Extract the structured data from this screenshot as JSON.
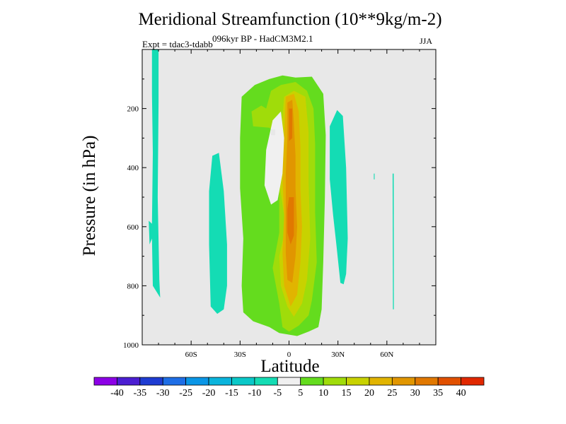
{
  "chart_data": {
    "type": "contour",
    "title": "Meridional Streamfunction (10**9kg/m-2)",
    "subtitle": "096kyr BP - HadCM3M2.1",
    "left_string": "Expt = tdac3-tdabb",
    "right_string": "JJA",
    "xlabel": "Latitude",
    "ylabel": "Pressure (in hPa)",
    "xlim": [
      -90,
      90
    ],
    "ylim": [
      1000,
      0
    ],
    "x_ticks": [
      {
        "value": -60,
        "label": "60S"
      },
      {
        "value": -30,
        "label": "30S"
      },
      {
        "value": 0,
        "label": "0"
      },
      {
        "value": 30,
        "label": "30N"
      },
      {
        "value": 60,
        "label": "60N"
      }
    ],
    "y_ticks": [
      {
        "value": 200,
        "label": "200"
      },
      {
        "value": 400,
        "label": "400"
      },
      {
        "value": 600,
        "label": "600"
      },
      {
        "value": 800,
        "label": "800"
      },
      {
        "value": 1000,
        "label": "1000"
      }
    ],
    "colorbar": {
      "labels": [
        "-40",
        "-35",
        "-30",
        "-25",
        "-20",
        "-15",
        "-10",
        "-5",
        "5",
        "10",
        "15",
        "20",
        "25",
        "30",
        "35",
        "40"
      ],
      "colors": [
        "#8c00e6",
        "#4b1ed2",
        "#1e3cd2",
        "#1e6ee6",
        "#0a96e6",
        "#0ab4dc",
        "#0ac8c8",
        "#14dcb4",
        "#f0f0f0",
        "#64dc1e",
        "#a0dc0a",
        "#c8d200",
        "#e1b400",
        "#e19600",
        "#e17800",
        "#e15000",
        "#e12800"
      ]
    },
    "background_color": "#e8e8e8",
    "regions": [
      {
        "level": -5,
        "color": "#14dcb4",
        "points": [
          [
            -84,
            0
          ],
          [
            -80,
            0
          ],
          [
            -80,
            180
          ],
          [
            -80.5,
            500
          ],
          [
            -79.5,
            780
          ],
          [
            -79,
            840
          ],
          [
            -83.5,
            800
          ],
          [
            -84,
            640
          ],
          [
            -85.5,
            660
          ],
          [
            -86,
            580
          ],
          [
            -84,
            590
          ],
          [
            -83.5,
            350
          ],
          [
            -84,
            150
          ]
        ]
      },
      {
        "level": -5,
        "color": "#14dcb4",
        "points": [
          [
            -47,
            360
          ],
          [
            -43,
            350
          ],
          [
            -40,
            480
          ],
          [
            -38,
            660
          ],
          [
            -38,
            800
          ],
          [
            -40,
            880
          ],
          [
            -44,
            895
          ],
          [
            -48,
            870
          ],
          [
            -49,
            660
          ],
          [
            -49,
            480
          ]
        ]
      },
      {
        "level": -5,
        "color": "#14dcb4",
        "points": [
          [
            25,
            260
          ],
          [
            29.5,
            205
          ],
          [
            33,
            225
          ],
          [
            35,
            400
          ],
          [
            36,
            640
          ],
          [
            35,
            760
          ],
          [
            33.5,
            795
          ],
          [
            31.5,
            790
          ],
          [
            29,
            660
          ],
          [
            27,
            560
          ],
          [
            25,
            440
          ]
        ]
      },
      {
        "level": -5,
        "color": "#14dcb4",
        "points": [
          [
            63.5,
            420
          ],
          [
            64.2,
            420
          ],
          [
            64.3,
            880
          ],
          [
            63.7,
            880
          ]
        ]
      },
      {
        "level": -5,
        "color": "#14dcb4",
        "points": [
          [
            52,
            420
          ],
          [
            52.5,
            420
          ],
          [
            52.5,
            440
          ],
          [
            52,
            440
          ]
        ]
      },
      {
        "level": 5,
        "color": "#64dc1e",
        "points": [
          [
            -29,
            160
          ],
          [
            -21,
            120
          ],
          [
            -12,
            100
          ],
          [
            -4,
            88
          ],
          [
            4,
            95
          ],
          [
            14,
            92
          ],
          [
            21,
            150
          ],
          [
            22.5,
            290
          ],
          [
            22,
            500
          ],
          [
            21,
            720
          ],
          [
            20,
            880
          ],
          [
            18,
            940
          ],
          [
            12,
            955
          ],
          [
            5,
            970
          ],
          [
            -6,
            960
          ],
          [
            -12,
            940
          ],
          [
            -22,
            920
          ],
          [
            -28,
            890
          ],
          [
            -29,
            800
          ],
          [
            -28,
            640
          ],
          [
            -30,
            470
          ],
          [
            -30,
            300
          ]
        ]
      },
      {
        "level": 10,
        "color": "#a0dc0a",
        "points": [
          [
            -23,
            210
          ],
          [
            -17,
            190
          ],
          [
            -14,
            200
          ],
          [
            -11,
            140
          ],
          [
            -5,
            120
          ],
          [
            4,
            110
          ],
          [
            11,
            140
          ],
          [
            15,
            200
          ],
          [
            16,
            320
          ],
          [
            16,
            550
          ],
          [
            17,
            720
          ],
          [
            14,
            850
          ],
          [
            12,
            900
          ],
          [
            6,
            935
          ],
          [
            0,
            955
          ],
          [
            -4,
            940
          ],
          [
            -6,
            860
          ],
          [
            -10,
            740
          ],
          [
            -6,
            620
          ],
          [
            -6,
            430
          ],
          [
            -6,
            300
          ],
          [
            -12,
            265
          ],
          [
            -22,
            260
          ]
        ]
      },
      {
        "level": 15,
        "color": "#c8d200",
        "points": [
          [
            -3,
            160
          ],
          [
            3,
            140
          ],
          [
            10,
            160
          ],
          [
            12,
            280
          ],
          [
            12,
            450
          ],
          [
            13,
            640
          ],
          [
            11,
            780
          ],
          [
            8,
            860
          ],
          [
            3,
            905
          ],
          [
            -1,
            870
          ],
          [
            -5,
            800
          ],
          [
            -6,
            700
          ],
          [
            -2,
            600
          ],
          [
            -6,
            450
          ],
          [
            -5,
            330
          ],
          [
            -4,
            230
          ]
        ]
      },
      {
        "level": 20,
        "color": "#e1b400",
        "points": [
          [
            -2,
            160
          ],
          [
            3,
            150
          ],
          [
            6,
            210
          ],
          [
            7,
            330
          ],
          [
            7,
            470
          ],
          [
            8,
            600
          ],
          [
            7,
            720
          ],
          [
            5,
            830
          ],
          [
            1,
            870
          ],
          [
            -3,
            800
          ],
          [
            -4,
            690
          ],
          [
            -3,
            560
          ],
          [
            -4,
            440
          ],
          [
            -3,
            300
          ]
        ]
      },
      {
        "level": 25,
        "color": "#e19600",
        "points": [
          [
            -1,
            180
          ],
          [
            2,
            170
          ],
          [
            3,
            250
          ],
          [
            4,
            360
          ],
          [
            4,
            470
          ],
          [
            5,
            600
          ],
          [
            4,
            700
          ],
          [
            2,
            790
          ],
          [
            -1,
            780
          ],
          [
            -2,
            690
          ],
          [
            -2,
            580
          ],
          [
            -2,
            420
          ],
          [
            -1,
            300
          ]
        ]
      },
      {
        "level": 30,
        "color": "#e17800",
        "points": [
          [
            0,
            200
          ],
          [
            2,
            200
          ],
          [
            2,
            300
          ],
          [
            0,
            310
          ]
        ]
      },
      {
        "level": 30,
        "color": "#e17800",
        "points": [
          [
            0,
            500
          ],
          [
            3,
            500
          ],
          [
            3,
            630
          ],
          [
            1,
            660
          ],
          [
            -1,
            620
          ],
          [
            -1,
            540
          ]
        ]
      },
      {
        "level": -5,
        "color": "#f0f0f0",
        "points": [
          [
            -14,
            340
          ],
          [
            -10,
            240
          ],
          [
            -5,
            210
          ],
          [
            -3,
            300
          ],
          [
            -4,
            420
          ],
          [
            -7,
            510
          ],
          [
            -11,
            525
          ],
          [
            -15,
            460
          ]
        ]
      },
      {
        "level": -5,
        "color": "#e8e8e8",
        "points": [
          [
            -11,
            270
          ],
          [
            -8.5,
            270
          ],
          [
            -8.5,
            290
          ],
          [
            -11,
            290
          ]
        ]
      }
    ]
  }
}
